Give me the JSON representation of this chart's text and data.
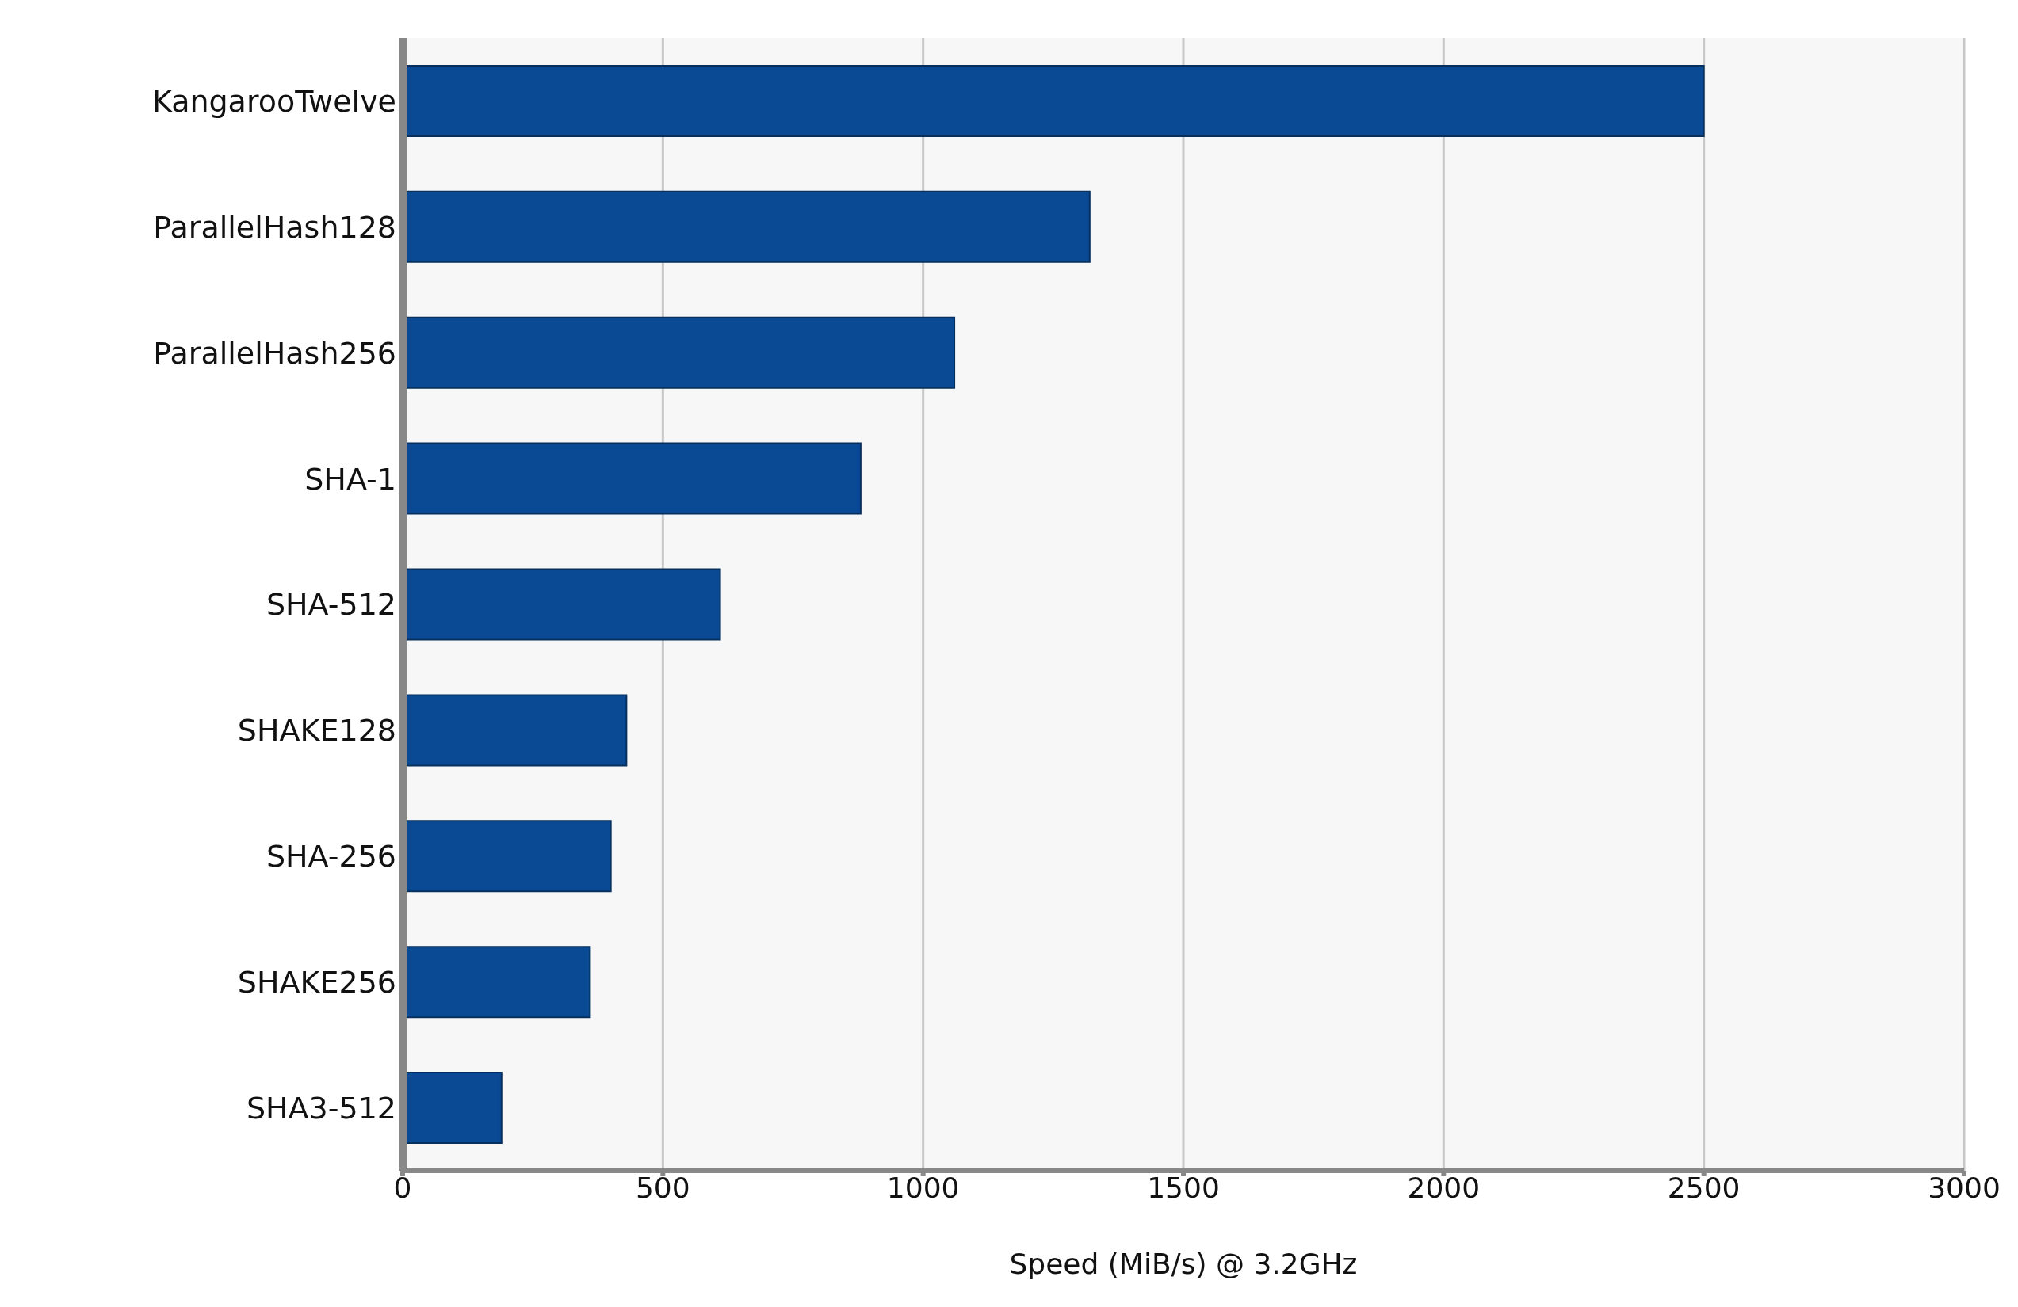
{
  "chart_data": {
    "type": "bar",
    "orientation": "horizontal",
    "xlabel": "Speed (MiB/s) @ 3.2GHz",
    "categories": [
      "KangarooTwelve",
      "ParallelHash128",
      "ParallelHash256",
      "SHA-1",
      "SHA-512",
      "SHAKE128",
      "SHA-256",
      "SHAKE256",
      "SHA3-512"
    ],
    "values": [
      2500,
      1320,
      1060,
      880,
      610,
      430,
      400,
      360,
      190
    ],
    "color": "#0a4a94",
    "xlim": [
      0,
      3000
    ],
    "xticks": [
      0,
      500,
      1000,
      1500,
      2000,
      2500,
      3000
    ],
    "grid": "x"
  }
}
